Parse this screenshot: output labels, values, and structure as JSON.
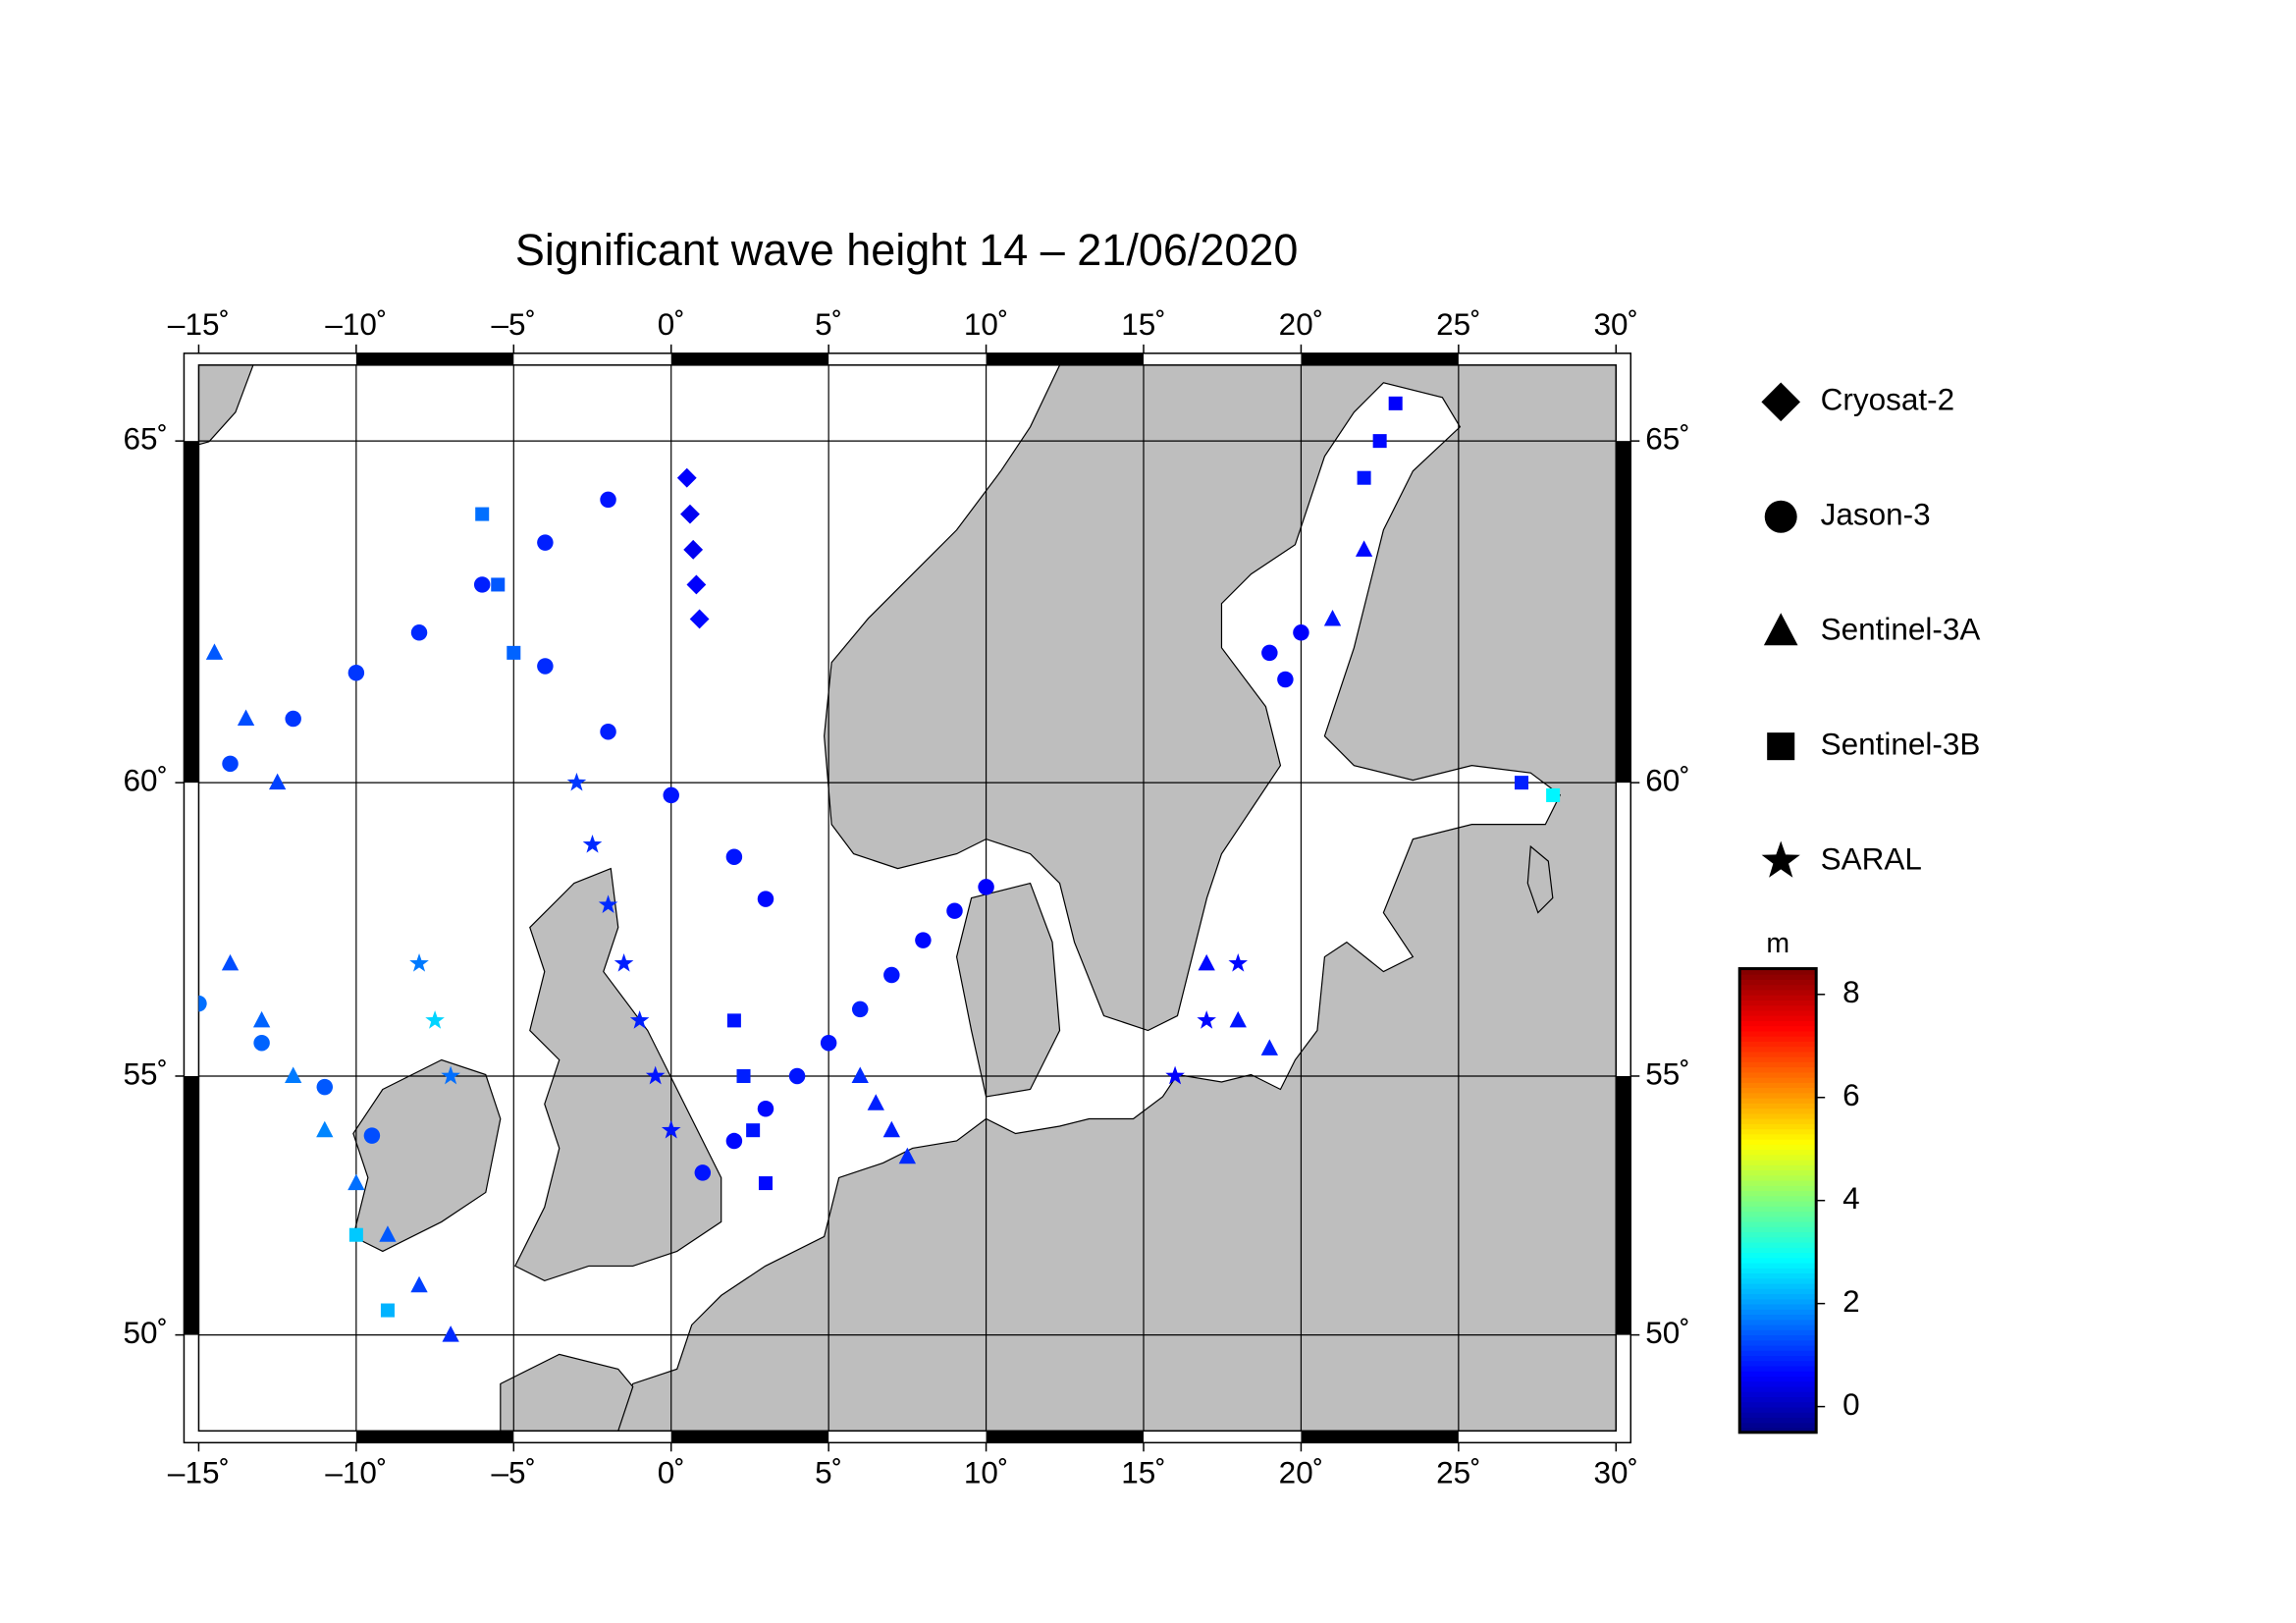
{
  "chart_data": {
    "type": "scatter",
    "projection": "mercator",
    "title": "Significant wave height 14 – 21/06/2020",
    "xlim": [
      -15,
      30
    ],
    "ylim": [
      48,
      66
    ],
    "xticks": [
      {
        "value": -15,
        "label": "–15˚"
      },
      {
        "value": -10,
        "label": "–10˚"
      },
      {
        "value": -5,
        "label": "–5˚"
      },
      {
        "value": 0,
        "label": "0˚"
      },
      {
        "value": 5,
        "label": "5˚"
      },
      {
        "value": 10,
        "label": "10˚"
      },
      {
        "value": 15,
        "label": "15˚"
      },
      {
        "value": 20,
        "label": "20˚"
      },
      {
        "value": 25,
        "label": "25˚"
      },
      {
        "value": 30,
        "label": "30˚"
      }
    ],
    "yticks": [
      {
        "value": 50,
        "label": "50˚"
      },
      {
        "value": 55,
        "label": "55˚"
      },
      {
        "value": 60,
        "label": "60˚"
      },
      {
        "value": 65,
        "label": "65˚"
      }
    ],
    "grid": true,
    "colorbar": {
      "label": "m",
      "colormap": "jet",
      "range": [
        -0.5,
        8.5
      ],
      "ticks": [
        0,
        2,
        4,
        6,
        8
      ]
    },
    "series": [
      {
        "name": "Cryosat-2",
        "marker": "diamond",
        "lon": [
          0.5,
          0.6,
          0.7,
          0.8,
          0.9
        ],
        "lat": [
          64.5,
          64,
          63.5,
          63,
          62.5
        ],
        "values": [
          0.6,
          0.5,
          0.5,
          0.6,
          0.7
        ]
      },
      {
        "name": "Jason-3",
        "marker": "circle",
        "lon": [
          1,
          2,
          3,
          4,
          5,
          6,
          7,
          8,
          9,
          10,
          -14,
          -12,
          -10,
          -8,
          -6,
          -4,
          -2,
          -4,
          -2,
          0,
          2,
          3,
          19,
          20,
          19.5,
          -15,
          -13,
          -11,
          -9.5
        ],
        "lat": [
          53.2,
          53.8,
          54.4,
          55,
          55.6,
          56.2,
          56.8,
          57.4,
          57.9,
          58.3,
          60.3,
          61,
          61.7,
          62.3,
          63,
          63.6,
          64.2,
          61.8,
          60.8,
          59.8,
          58.8,
          58.1,
          62,
          62.3,
          61.6,
          56.3,
          55.6,
          54.8,
          53.9
        ],
        "values": [
          0.8,
          0.7,
          0.7,
          0.8,
          0.8,
          0.9,
          0.8,
          0.7,
          0.7,
          0.6,
          1.2,
          1.1,
          1.1,
          1.0,
          0.9,
          0.9,
          0.8,
          1.0,
          0.9,
          0.8,
          0.8,
          0.7,
          0.7,
          0.6,
          0.7,
          1.6,
          1.5,
          1.4,
          1.3
        ]
      },
      {
        "name": "Sentinel-3A",
        "marker": "triangle",
        "lon": [
          -14,
          -13,
          -12,
          -11,
          -10,
          -9,
          -8,
          -7,
          6,
          6.5,
          7,
          7.5,
          17,
          18,
          19,
          22,
          21,
          -14.5,
          -13.5,
          -12.5
        ],
        "lat": [
          57,
          56,
          55,
          54,
          53,
          52,
          51,
          50,
          55,
          54.5,
          54,
          53.5,
          57,
          56,
          55.5,
          63.5,
          62.5,
          62,
          61,
          60
        ],
        "values": [
          1.3,
          1.5,
          1.7,
          1.8,
          1.6,
          1.4,
          1.2,
          1.0,
          1.0,
          0.9,
          0.9,
          1.0,
          0.7,
          0.8,
          0.9,
          0.7,
          0.8,
          1.4,
          1.3,
          1.2
        ]
      },
      {
        "name": "Sentinel-3B",
        "marker": "square",
        "lon": [
          2,
          2.3,
          2.6,
          3,
          22,
          22.5,
          23,
          -10,
          -9,
          27,
          28,
          -6,
          -5.5,
          -5
        ],
        "lat": [
          56,
          55,
          54,
          53,
          64.5,
          65,
          65.5,
          52,
          50.5,
          60,
          59.8,
          64,
          63,
          62
        ],
        "values": [
          0.8,
          0.9,
          0.8,
          0.7,
          0.8,
          0.7,
          0.6,
          2.4,
          2.2,
          0.9,
          2.8,
          1.6,
          1.4,
          1.5
        ]
      },
      {
        "name": "SARAL",
        "marker": "star",
        "lon": [
          -3,
          -2.5,
          -2,
          -1.5,
          -1,
          -0.5,
          0,
          16,
          17,
          18,
          -8,
          -7.5,
          -7
        ],
        "lat": [
          60,
          59,
          58,
          57,
          56,
          55,
          54,
          55,
          56,
          57,
          57,
          56,
          55
        ],
        "values": [
          1.1,
          1.0,
          1.0,
          0.9,
          0.9,
          0.8,
          0.8,
          0.6,
          0.7,
          0.7,
          1.7,
          2.5,
          1.6
        ]
      }
    ]
  }
}
